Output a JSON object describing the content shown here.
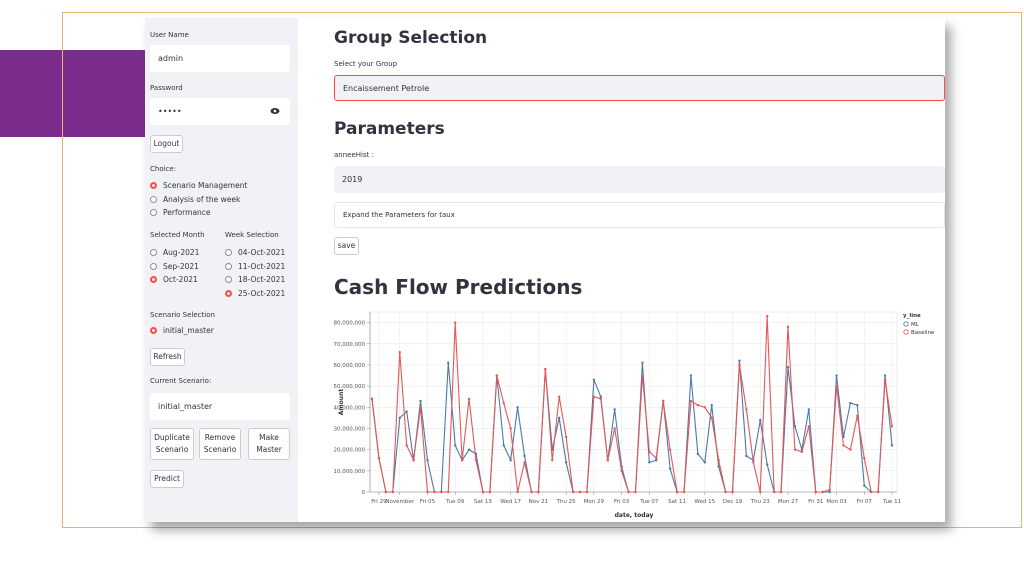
{
  "sidebar": {
    "username_label": "User Name",
    "username_value": "admin",
    "password_label": "Password",
    "password_value": "•••••",
    "logout": "Logout",
    "choice_label": "Choice:",
    "choice_options": [
      {
        "label": "Scenario Management",
        "selected": true
      },
      {
        "label": "Analysis of the week",
        "selected": false
      },
      {
        "label": "Performance",
        "selected": false
      }
    ],
    "month_label": "Selected Month",
    "months": [
      {
        "label": "Aug-2021",
        "selected": false
      },
      {
        "label": "Sep-2021",
        "selected": false
      },
      {
        "label": "Oct-2021",
        "selected": true
      }
    ],
    "week_label": "Week Selection",
    "weeks": [
      {
        "label": "04-Oct-2021",
        "selected": false
      },
      {
        "label": "11-Oct-2021",
        "selected": false
      },
      {
        "label": "18-Oct-2021",
        "selected": false
      },
      {
        "label": "25-Oct-2021",
        "selected": true
      }
    ],
    "scenario_label": "Scenario Selection",
    "scenarios": [
      {
        "label": "initial_master",
        "selected": true
      }
    ],
    "refresh": "Refresh",
    "current_label": "Current Scenario:",
    "current_value": "initial_master",
    "buttons": [
      "Duplicate Scenario",
      "Remove Scenario",
      "Make Master"
    ],
    "predict": "Predict"
  },
  "main": {
    "group_title": "Group Selection",
    "group_label": "Select your Group",
    "group_value": "Encaissement Petrole",
    "params_title": "Parameters",
    "annee_label": "anneeHist :",
    "annee_value": "2019",
    "expander": "Expand the Parameters for taux",
    "save": "save"
  },
  "chart_data": {
    "type": "line",
    "title": "Cash Flow Predictions",
    "x_label": "date, today",
    "y_label": "Amount",
    "categories": [
      null,
      "Fri 29",
      null,
      null,
      "November",
      null,
      null,
      null,
      "Fri 05",
      null,
      null,
      null,
      "Tue 09",
      null,
      null,
      null,
      "Sat 13",
      null,
      null,
      null,
      "Wed 17",
      null,
      null,
      null,
      "Nov 21",
      null,
      null,
      null,
      "Thu 25",
      null,
      null,
      null,
      "Mon 29",
      null,
      null,
      null,
      "Fri 03",
      null,
      null,
      null,
      "Tue 07",
      null,
      null,
      null,
      "Sat 11",
      null,
      null,
      null,
      "Wed 15",
      null,
      null,
      null,
      "Dec 19",
      null,
      null,
      null,
      "Thu 23",
      null,
      null,
      null,
      "Mon 27",
      null,
      null,
      null,
      "Fri 31",
      null,
      null,
      "Mon 03",
      null,
      null,
      null,
      "Fri 07",
      null,
      null,
      null,
      "Tue 11"
    ],
    "legend_title": "y_line",
    "series": [
      {
        "name": "ML",
        "color": "#4c78a8",
        "values": [
          44000000,
          16000000,
          0,
          0,
          35000000,
          38000000,
          15000000,
          43000000,
          15000000,
          0,
          0,
          61000000,
          22000000,
          15000000,
          20000000,
          18000000,
          0,
          0,
          55000000,
          22000000,
          15000000,
          40000000,
          17000000,
          0,
          0,
          58000000,
          20000000,
          35000000,
          14000000,
          0,
          0,
          0,
          53000000,
          45000000,
          15000000,
          39000000,
          12000000,
          0,
          0,
          61000000,
          14000000,
          15000000,
          43000000,
          11000000,
          0,
          0,
          55000000,
          18000000,
          14000000,
          41000000,
          12000000,
          0,
          0,
          62000000,
          17000000,
          15000000,
          34000000,
          13000000,
          0,
          0,
          59000000,
          31000000,
          20000000,
          39000000,
          0,
          0,
          0,
          55000000,
          26000000,
          42000000,
          41000000,
          3000000,
          0,
          0,
          55000000,
          22000000
        ]
      },
      {
        "name": "Baseline",
        "color": "#e45756",
        "values": [
          44000000,
          16000000,
          0,
          0,
          66000000,
          22000000,
          15000000,
          40000000,
          0,
          0,
          0,
          0,
          80000000,
          15000000,
          44000000,
          15000000,
          0,
          0,
          55000000,
          42000000,
          30000000,
          0,
          14000000,
          0,
          0,
          58000000,
          15000000,
          45000000,
          26000000,
          0,
          0,
          0,
          45000000,
          44000000,
          15000000,
          30000000,
          10000000,
          0,
          0,
          55000000,
          19000000,
          16000000,
          43000000,
          20000000,
          0,
          0,
          43000000,
          41000000,
          40000000,
          35000000,
          15000000,
          0,
          0,
          60000000,
          39000000,
          14000000,
          0,
          83000000,
          0,
          0,
          78000000,
          20000000,
          19000000,
          31000000,
          0,
          0,
          1000000,
          50000000,
          22000000,
          20000000,
          36000000,
          16000000,
          0,
          0,
          53000000,
          31000000
        ]
      }
    ],
    "ylim": [
      0,
      85000000
    ],
    "yticks": [
      0,
      {
        "value": 10000000,
        "label": "10,000,000"
      },
      {
        "value": 20000000,
        "label": "20,000,000"
      },
      {
        "value": 30000000,
        "label": "30,000,000"
      },
      {
        "value": 40000000,
        "label": "40,000,000"
      },
      {
        "value": 50000000,
        "label": "50,000,000"
      },
      {
        "value": 60000000,
        "label": "60,000,000"
      },
      {
        "value": 70000000,
        "label": "70,000,000"
      },
      {
        "value": 80000000,
        "label": "80,000,000"
      }
    ],
    "grid": true
  }
}
